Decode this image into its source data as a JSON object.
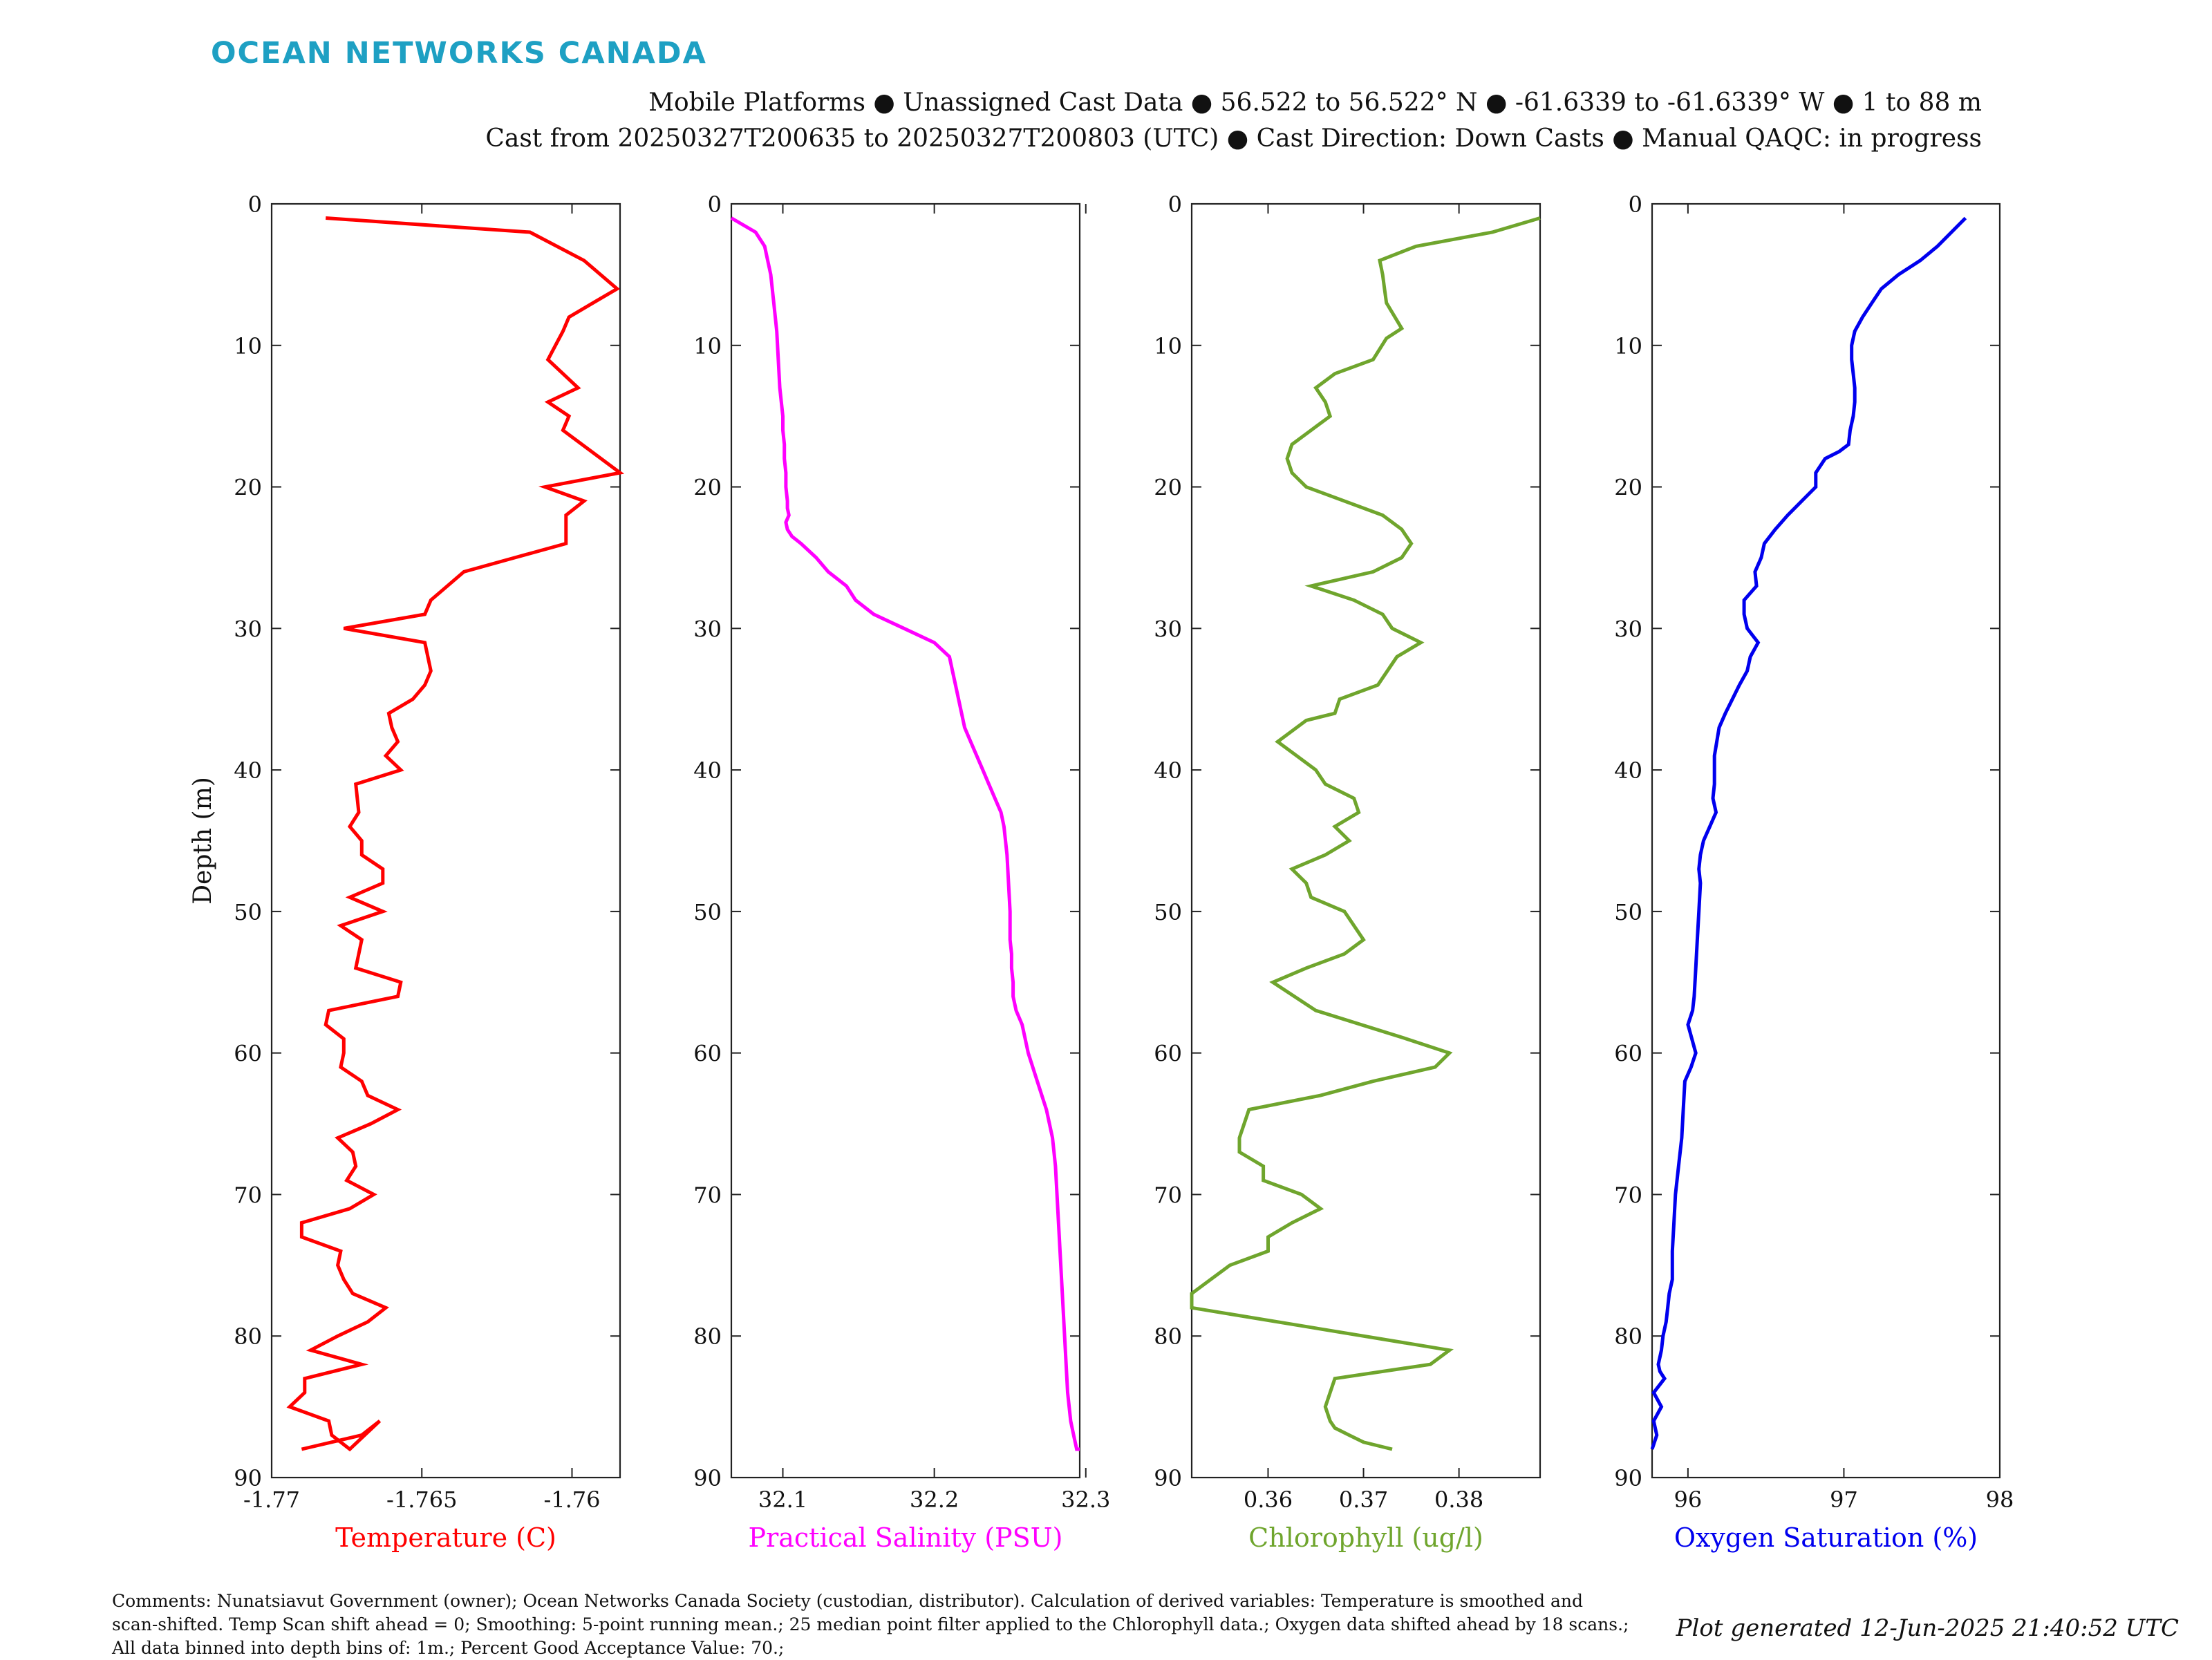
{
  "header": {
    "logo": "OCEAN NETWORKS CANADA",
    "line1": "Mobile Platforms ● Unassigned Cast Data ● 56.522 to 56.522° N ● -61.6339 to -61.6339° W ● 1 to 88 m",
    "line2": "Cast from 20250327T200635 to 20250327T200803 (UTC) ● Cast Direction: Down Casts ● Manual QAQC: in progress"
  },
  "footer": {
    "comments": "Comments: Nunatsiavut Government (owner); Ocean Networks Canada Society (custodian, distributor). Calculation of derived variables: Temperature is smoothed and scan-shifted. Temp Scan shift ahead = 0; Smoothing: 5-point running mean.; 25 median point filter applied to the Chlorophyll data.; Oxygen data shifted ahead by 18 scans.; All data binned into depth bins of: 1m.; Percent Good Acceptance Value: 70.;",
    "generated": "Plot generated 12-Jun-2025 21:40:52 UTC"
  },
  "chart_data": [
    {
      "type": "line",
      "xlabel": "Temperature (C)",
      "ylabel": "Depth (m)",
      "color": "#ff0000",
      "xlim": [
        -1.77,
        -1.7584
      ],
      "ylim": [
        0,
        90
      ],
      "y_reversed": true,
      "xticks": [
        -1.77,
        -1.765,
        -1.76
      ],
      "xtick_labels": [
        "-1.77",
        "-1.765",
        "-1.76"
      ],
      "yticks": [
        0,
        10,
        20,
        30,
        40,
        50,
        60,
        70,
        80,
        90
      ],
      "x": [
        -1.7682,
        -1.7614,
        -1.7596,
        -1.7585,
        -1.7593,
        -1.7601,
        -1.7603,
        -1.7608,
        -1.7598,
        -1.7608,
        -1.7601,
        -1.7603,
        -1.7584,
        -1.7609,
        -1.7596,
        -1.7602,
        -1.7602,
        -1.7619,
        -1.7636,
        -1.7647,
        -1.7649,
        -1.7676,
        -1.7649,
        -1.7647,
        -1.7649,
        -1.7653,
        -1.7661,
        -1.766,
        -1.7658,
        -1.7662,
        -1.7657,
        -1.7672,
        -1.7671,
        -1.7674,
        -1.767,
        -1.767,
        -1.7663,
        -1.7663,
        -1.7674,
        -1.7663,
        -1.7677,
        -1.767,
        -1.7672,
        -1.7657,
        -1.7658,
        -1.7681,
        -1.7682,
        -1.7676,
        -1.7676,
        -1.7677,
        -1.767,
        -1.7668,
        -1.7658,
        -1.7667,
        -1.7678,
        -1.7673,
        -1.7672,
        -1.7675,
        -1.7666,
        -1.7674,
        -1.769,
        -1.769,
        -1.7677,
        -1.7678,
        -1.7676,
        -1.7673,
        -1.7662,
        -1.7668,
        -1.7678,
        -1.7687,
        -1.767,
        -1.7689,
        -1.7689,
        -1.7694,
        -1.7681,
        -1.768,
        -1.7674,
        -1.7664,
        -1.767,
        -1.769
      ],
      "y": [
        1,
        2,
        4,
        6,
        7,
        8,
        9,
        11,
        13,
        14,
        15,
        16,
        19,
        20,
        21,
        22,
        24,
        25,
        26,
        28,
        29,
        30,
        31,
        33,
        34,
        35,
        36,
        37,
        38,
        39,
        40,
        41,
        43,
        44,
        45,
        46,
        47,
        48,
        49,
        50,
        51,
        52,
        54,
        55,
        56,
        57,
        58,
        59,
        60,
        61,
        62,
        63,
        64,
        65,
        66,
        67,
        68,
        69,
        70,
        71,
        72,
        73,
        74,
        75,
        76,
        77,
        78,
        79,
        80,
        81,
        82,
        83,
        84,
        85,
        86,
        87,
        88,
        86,
        87,
        88
      ]
    },
    {
      "type": "line",
      "xlabel": "Practical Salinity (PSU)",
      "color": "#ff00ff",
      "xlim": [
        32.066,
        32.296
      ],
      "ylim": [
        0,
        90
      ],
      "y_reversed": true,
      "xticks": [
        32.1,
        32.2,
        32.3
      ],
      "xtick_labels": [
        "32.1",
        "32.2",
        "32.3"
      ],
      "yticks": [
        0,
        10,
        20,
        30,
        40,
        50,
        60,
        70,
        80,
        90
      ],
      "x": [
        32.066,
        32.082,
        32.088,
        32.092,
        32.094,
        32.096,
        32.097,
        32.098,
        32.099,
        32.1,
        32.1,
        32.101,
        32.101,
        32.102,
        32.102,
        32.103,
        32.103,
        32.104,
        32.102,
        32.103,
        32.106,
        32.112,
        32.122,
        32.13,
        32.142,
        32.148,
        32.16,
        32.18,
        32.2,
        32.21,
        32.212,
        32.214,
        32.216,
        32.218,
        32.22,
        32.224,
        32.228,
        32.232,
        32.236,
        32.24,
        32.244,
        32.246,
        32.248,
        32.249,
        32.25,
        32.25,
        32.251,
        32.251,
        32.252,
        32.252,
        32.254,
        32.258,
        32.262,
        32.268,
        32.274,
        32.278,
        32.28,
        32.281,
        32.282,
        32.283,
        32.284,
        32.285,
        32.286,
        32.287,
        32.288,
        32.289,
        32.29,
        32.291,
        32.292,
        32.293,
        32.294,
        32.295,
        32.295,
        32.295,
        32.296
      ],
      "y": [
        1,
        2,
        3,
        5,
        7,
        9,
        11,
        13,
        14,
        15,
        16,
        17,
        18,
        19,
        20,
        21,
        21.5,
        22,
        22.5,
        23,
        23.5,
        24,
        25,
        26,
        27,
        28,
        29,
        30,
        31,
        32,
        33,
        34,
        35,
        36,
        37,
        38,
        39,
        40,
        41,
        42,
        43,
        44,
        46,
        48,
        50,
        52,
        53,
        54,
        55,
        56,
        57,
        58,
        60,
        62,
        64,
        66,
        68,
        70,
        72,
        74,
        76,
        78,
        80,
        82,
        84,
        85,
        86,
        86.5,
        87,
        87.5,
        88,
        88,
        88,
        88,
        88
      ]
    },
    {
      "type": "line",
      "xlabel": "Chlorophyll (ug/l)",
      "color": "#6fa52d",
      "xlim": [
        0.352,
        0.3885
      ],
      "ylim": [
        0,
        90
      ],
      "y_reversed": true,
      "xticks": [
        0.36,
        0.37,
        0.38
      ],
      "xtick_labels": [
        "0.36",
        "0.37",
        "0.38"
      ],
      "yticks": [
        0,
        10,
        20,
        30,
        40,
        50,
        60,
        70,
        80,
        90
      ],
      "x": [
        0.3885,
        0.3835,
        0.3755,
        0.3717,
        0.372,
        0.3722,
        0.3724,
        0.374,
        0.3724,
        0.371,
        0.367,
        0.365,
        0.366,
        0.3665,
        0.3645,
        0.3625,
        0.362,
        0.3625,
        0.364,
        0.372,
        0.374,
        0.375,
        0.374,
        0.371,
        0.3645,
        0.369,
        0.372,
        0.373,
        0.376,
        0.3735,
        0.3715,
        0.3675,
        0.367,
        0.364,
        0.361,
        0.363,
        0.365,
        0.366,
        0.369,
        0.3695,
        0.367,
        0.3685,
        0.366,
        0.3625,
        0.364,
        0.3645,
        0.368,
        0.37,
        0.368,
        0.364,
        0.3605,
        0.365,
        0.3745,
        0.379,
        0.3775,
        0.371,
        0.3655,
        0.358,
        0.3575,
        0.357,
        0.357,
        0.3595,
        0.3595,
        0.3635,
        0.3655,
        0.3625,
        0.36,
        0.36,
        0.356,
        0.354,
        0.352,
        0.352,
        0.379,
        0.377,
        0.367,
        0.3665,
        0.366,
        0.3665,
        0.367,
        0.3685,
        0.37,
        0.373
      ],
      "y": [
        1,
        2,
        3,
        4,
        5,
        6,
        7,
        8.8,
        9.5,
        11,
        12,
        13,
        14,
        15,
        16,
        17,
        18,
        19,
        20,
        22,
        23,
        24,
        25,
        26,
        27,
        28,
        29,
        30,
        31,
        32,
        34,
        35,
        36,
        36.5,
        38,
        39,
        40,
        41,
        42,
        43,
        44,
        45,
        46,
        47,
        48,
        49,
        50,
        52,
        53,
        54,
        55,
        57,
        59,
        60,
        61,
        62,
        63,
        64,
        65,
        66,
        67,
        68,
        69,
        70,
        71,
        72,
        73,
        74,
        75,
        76,
        77,
        78,
        81,
        82,
        83,
        84,
        85,
        86,
        86.5,
        87,
        87.5,
        88
      ]
    },
    {
      "type": "line",
      "xlabel": "Oxygen Saturation (%)",
      "color": "#0000ee",
      "xlim": [
        95.77,
        98
      ],
      "ylim": [
        0,
        90
      ],
      "y_reversed": true,
      "xticks": [
        96,
        97,
        98
      ],
      "xtick_labels": [
        "96",
        "97",
        "98"
      ],
      "yticks": [
        0,
        10,
        20,
        30,
        40,
        50,
        60,
        70,
        80,
        90
      ],
      "x": [
        97.78,
        97.6,
        97.49,
        97.35,
        97.24,
        97.18,
        97.12,
        97.07,
        97.05,
        97.05,
        97.06,
        97.07,
        97.07,
        97.06,
        97.04,
        97.03,
        96.97,
        96.88,
        96.82,
        96.82,
        96.73,
        96.64,
        96.56,
        96.49,
        96.47,
        96.43,
        96.44,
        96.36,
        96.36,
        96.38,
        96.45,
        96.4,
        96.38,
        96.33,
        96.24,
        96.2,
        96.17,
        96.17,
        96.16,
        96.18,
        96.14,
        96.1,
        96.08,
        96.07,
        96.08,
        96.07,
        96.06,
        96.05,
        96.04,
        96.03,
        96.0,
        96.05,
        96.02,
        95.98,
        95.97,
        95.96,
        95.94,
        95.92,
        95.91,
        95.9,
        95.9,
        95.88,
        95.87,
        95.86,
        95.84,
        95.83,
        95.81,
        95.82,
        95.85,
        95.78,
        95.83,
        95.78,
        95.8,
        95.77
      ],
      "y": [
        1,
        3,
        4,
        5,
        6,
        7,
        8,
        9,
        10,
        11,
        12,
        13,
        14,
        15,
        16,
        17,
        17.5,
        18,
        19,
        20,
        21,
        22,
        23,
        24,
        25,
        26,
        27,
        28,
        29,
        30,
        31,
        32,
        33,
        34,
        36,
        37,
        39,
        41,
        42,
        43,
        44,
        45,
        46,
        47,
        48,
        50,
        52,
        54,
        56,
        57,
        58,
        60,
        61,
        62,
        64,
        66,
        68,
        70,
        72,
        74,
        76,
        77,
        78,
        79,
        80,
        81,
        82,
        82.5,
        83,
        84,
        85,
        86,
        87,
        88
      ]
    }
  ]
}
